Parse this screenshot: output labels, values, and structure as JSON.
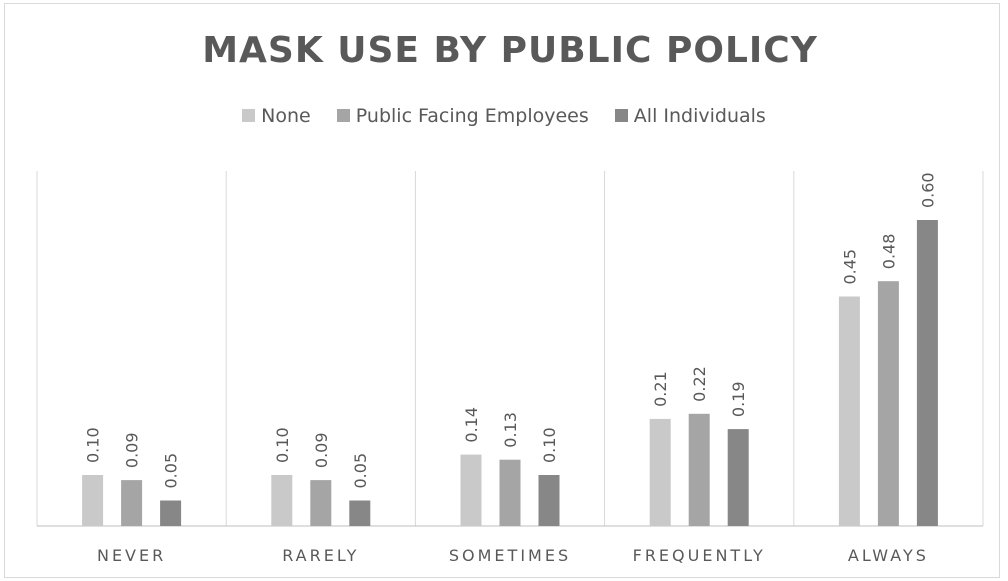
{
  "chart_data": {
    "type": "bar",
    "title": "MASK USE BY PUBLIC POLICY",
    "categories": [
      "NEVER",
      "RARELY",
      "SOMETIMES",
      "FREQUENTLY",
      "ALWAYS"
    ],
    "series": [
      {
        "name": "None",
        "color": "#c9c9c9",
        "values": [
          0.1,
          0.1,
          0.14,
          0.21,
          0.45
        ],
        "labels": [
          "0.10",
          "0.10",
          "0.14",
          "0.21",
          "0.45"
        ]
      },
      {
        "name": "Public Facing Employees",
        "color": "#a5a5a5",
        "values": [
          0.09,
          0.09,
          0.13,
          0.22,
          0.48
        ],
        "labels": [
          "0.09",
          "0.09",
          "0.13",
          "0.22",
          "0.48"
        ]
      },
      {
        "name": "All Individuals",
        "color": "#878787",
        "values": [
          0.05,
          0.05,
          0.1,
          0.19,
          0.6
        ],
        "labels": [
          "0.05",
          "0.05",
          "0.10",
          "0.19",
          "0.60"
        ]
      }
    ],
    "ylim": [
      0,
      0.8
    ],
    "grid": "vertical-category-separators",
    "legend": "top-center",
    "data_labels": true
  }
}
